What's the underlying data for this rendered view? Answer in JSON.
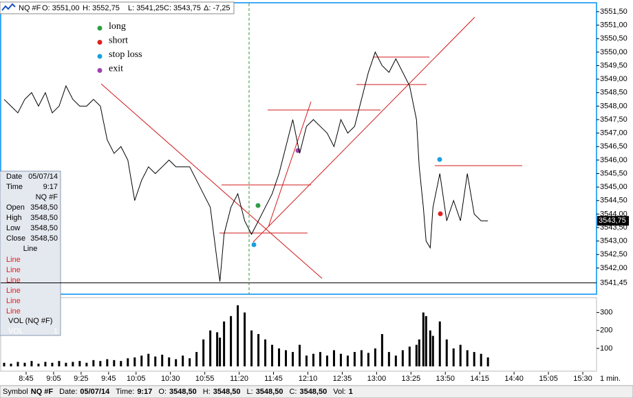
{
  "header": {
    "symbol": "NQ #F",
    "open": "O: 3551,00",
    "high": "H: 3552,75",
    "low": "L: 3541,25",
    "close": "C: 3543,75",
    "change": "Δ: -7,25"
  },
  "chart_data": [
    {
      "type": "line",
      "color": "#000000",
      "x": [
        509,
        514,
        519,
        524,
        529,
        534,
        539,
        544,
        549,
        554,
        559,
        564,
        569,
        574,
        579,
        584,
        589,
        594,
        599,
        604,
        609,
        614,
        619,
        624,
        629,
        634,
        639,
        644,
        649,
        654,
        659,
        664,
        666,
        669,
        674,
        679,
        684,
        689,
        694,
        699,
        704,
        709,
        714,
        719,
        724,
        729,
        734,
        739,
        744,
        749,
        754,
        759,
        764,
        769,
        774,
        779,
        784,
        789,
        794,
        799,
        804,
        809,
        811,
        814,
        816,
        819,
        821,
        826,
        831,
        836,
        841,
        846,
        851,
        856,
        861
      ],
      "values": [
        3548.25,
        3548.0,
        3547.75,
        3548.25,
        3548.5,
        3548.0,
        3548.5,
        3547.75,
        3548.0,
        3548.75,
        3548.25,
        3548.0,
        3548.0,
        3548.25,
        3548.0,
        3546.75,
        3546.25,
        3546.5,
        3546.0,
        3544.5,
        3545.25,
        3545.75,
        3545.5,
        3545.75,
        3546.0,
        3545.75,
        3545.75,
        3545.75,
        3545.25,
        3544.75,
        3544.25,
        3542.25,
        3541.5,
        3543.25,
        3544.25,
        3544.75,
        3543.75,
        3543.25,
        3543.75,
        3544.25,
        3544.75,
        3545.5,
        3546.5,
        3547.5,
        3546.25,
        3547.25,
        3547.5,
        3547.25,
        3547.0,
        3546.5,
        3547.5,
        3547.0,
        3547.25,
        3548.25,
        3549.25,
        3550.0,
        3549.5,
        3549.25,
        3549.75,
        3549.25,
        3548.75,
        3547.5,
        3545.75,
        3544.25,
        3543.0,
        3542.75,
        3544.25,
        3545.5,
        3543.75,
        3544.5,
        3543.75,
        3545.5,
        3544.0,
        3543.75,
        3543.75
      ],
      "xlim": [
        506.5,
        940
      ],
      "xticks": [
        {
          "value": 525,
          "label": "8:45"
        },
        {
          "value": 545,
          "label": "9:05"
        },
        {
          "value": 565,
          "label": "9:25"
        },
        {
          "value": 585,
          "label": "9:45"
        },
        {
          "value": 605,
          "label": "10:05"
        },
        {
          "value": 630,
          "label": "10:30"
        },
        {
          "value": 655,
          "label": "10:55"
        },
        {
          "value": 680,
          "label": "11:20"
        },
        {
          "value": 705,
          "label": "11:45"
        },
        {
          "value": 730,
          "label": "12:10"
        },
        {
          "value": 755,
          "label": "12:35"
        },
        {
          "value": 780,
          "label": "13:00"
        },
        {
          "value": 805,
          "label": "13:25"
        },
        {
          "value": 830,
          "label": "13:50"
        },
        {
          "value": 855,
          "label": "14:15"
        },
        {
          "value": 880,
          "label": "14:40"
        },
        {
          "value": 905,
          "label": "15:05"
        },
        {
          "value": 930,
          "label": "15:30"
        }
      ],
      "x_unit": "1 min.",
      "ylim": [
        3541.03,
        3551.83
      ],
      "yticks": [
        {
          "value": 3542.0,
          "label": "3542,00"
        },
        {
          "value": 3542.5,
          "label": "3542,50"
        },
        {
          "value": 3543.0,
          "label": "3543,00"
        },
        {
          "value": 3543.5,
          "label": "3543,50"
        },
        {
          "value": 3544.0,
          "label": "3544,00"
        },
        {
          "value": 3544.5,
          "label": "3544,50"
        },
        {
          "value": 3545.0,
          "label": "3545,00"
        },
        {
          "value": 3545.5,
          "label": "3545,50"
        },
        {
          "value": 3546.0,
          "label": "3546,00"
        },
        {
          "value": 3546.5,
          "label": "3546,50"
        },
        {
          "value": 3547.0,
          "label": "3547,00"
        },
        {
          "value": 3547.5,
          "label": "3547,50"
        },
        {
          "value": 3548.0,
          "label": "3548,00"
        },
        {
          "value": 3548.5,
          "label": "3548,50"
        },
        {
          "value": 3549.0,
          "label": "3549,00"
        },
        {
          "value": 3549.5,
          "label": "3549,50"
        },
        {
          "value": 3550.0,
          "label": "3550,00"
        },
        {
          "value": 3550.5,
          "label": "3550,50"
        },
        {
          "value": 3551.0,
          "label": "3551,00"
        },
        {
          "value": 3551.5,
          "label": "3551,50"
        }
      ],
      "last_price": {
        "value": 3543.75,
        "label": "3543,75"
      },
      "low_line": {
        "value": 3541.45,
        "label": "3541,45"
      },
      "signal_legend": [
        {
          "text": "long",
          "color": "#2e9e44"
        },
        {
          "text": "short",
          "color": "#e02020"
        },
        {
          "text": "stop loss",
          "color": "#1aa0e0"
        },
        {
          "text": "exit",
          "color": "#a040b0"
        }
      ]
    },
    {
      "type": "bar",
      "color": "#000000",
      "x": [
        509,
        514,
        519,
        524,
        529,
        534,
        539,
        544,
        549,
        554,
        559,
        564,
        569,
        574,
        579,
        584,
        589,
        594,
        599,
        604,
        609,
        614,
        619,
        624,
        629,
        634,
        639,
        644,
        649,
        654,
        659,
        664,
        666,
        669,
        674,
        679,
        684,
        689,
        694,
        699,
        704,
        709,
        714,
        719,
        724,
        729,
        734,
        739,
        744,
        749,
        754,
        759,
        764,
        769,
        774,
        779,
        784,
        789,
        794,
        799,
        804,
        809,
        811,
        814,
        816,
        819,
        821,
        826,
        831,
        836,
        841,
        846,
        851,
        856,
        861
      ],
      "values": [
        20,
        15,
        25,
        20,
        30,
        15,
        25,
        20,
        30,
        20,
        25,
        30,
        20,
        35,
        30,
        40,
        35,
        30,
        45,
        50,
        60,
        70,
        55,
        65,
        50,
        40,
        60,
        45,
        80,
        150,
        200,
        190,
        160,
        250,
        280,
        340,
        300,
        200,
        180,
        150,
        120,
        100,
        90,
        80,
        120,
        60,
        70,
        80,
        60,
        90,
        70,
        60,
        80,
        90,
        75,
        100,
        180,
        80,
        60,
        90,
        110,
        120,
        150,
        300,
        280,
        200,
        170,
        250,
        150,
        100,
        120,
        90,
        80,
        70,
        50
      ],
      "xlim": [
        506.5,
        940
      ],
      "ylim": [
        0,
        375
      ],
      "yticks": [
        100,
        200,
        300
      ]
    }
  ],
  "data_window": {
    "date_label": "Date",
    "date": "05/07/14",
    "time_label": "Time",
    "time": "9:17",
    "symbol": "NQ #F",
    "rows": [
      [
        "Open",
        "3548,50"
      ],
      [
        "High",
        "3548,50"
      ],
      [
        "Low",
        "3548,50"
      ],
      [
        "Close",
        "3548,50"
      ]
    ],
    "line_label": "Line",
    "lines": [
      "Line",
      "Line",
      "Line",
      "Line",
      "Line",
      "Line"
    ],
    "vol_label": "VOL (NQ #F)",
    "vol_row": [
      "VOL",
      "1"
    ]
  },
  "status_bar": [
    [
      "Symbol",
      "NQ #F"
    ],
    [
      "Date:",
      "05/07/14"
    ],
    [
      "Time:",
      "9:17"
    ],
    [
      "O:",
      "3548,50"
    ],
    [
      "H:",
      "3548,50"
    ],
    [
      "L:",
      "3548,50"
    ],
    [
      "C:",
      "3548,50"
    ],
    [
      "Vol:",
      "1"
    ]
  ]
}
